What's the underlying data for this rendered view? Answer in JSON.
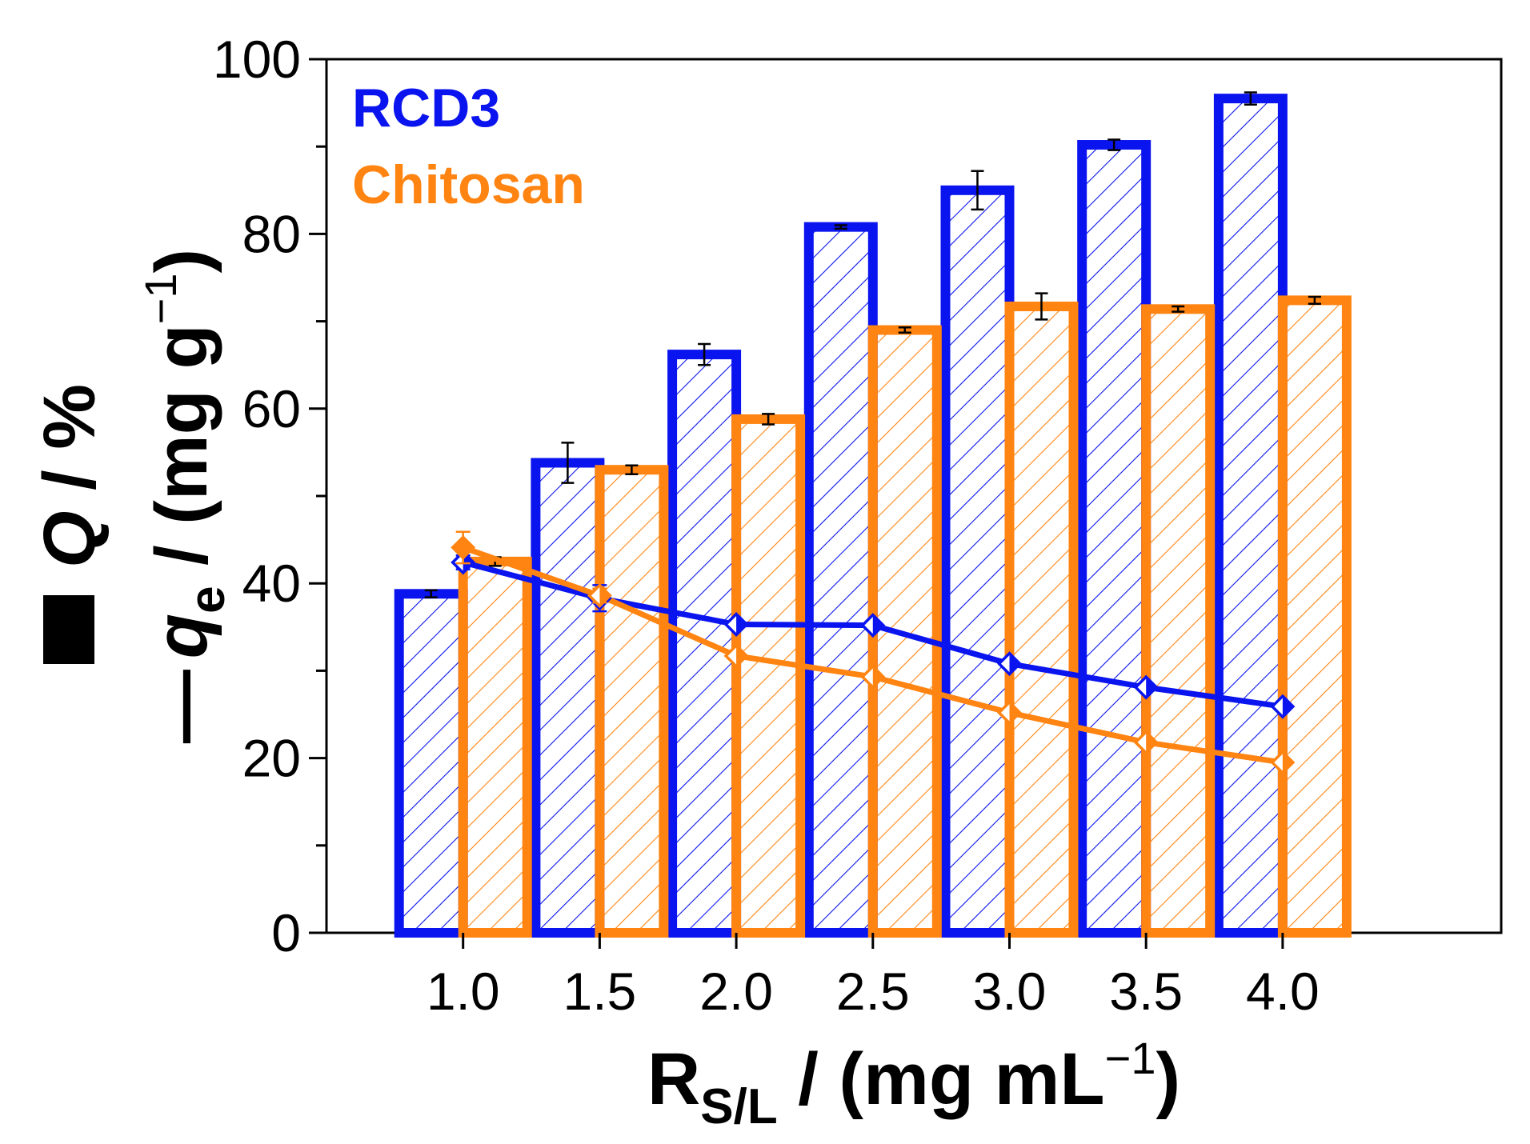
{
  "chart_data": {
    "type": "bar",
    "title": "",
    "xlabel": {
      "main": "R",
      "subscript": "S/L",
      "rest": " / (mg mL",
      "superscript": "−1",
      "close": ")"
    },
    "ylabel": {
      "q_label": {
        "symbol": "Q",
        "rest": " / %"
      },
      "qe_label": {
        "dash": "—",
        "symbol": "q",
        "subscript": "e",
        "rest": " / (mg g",
        "superscript": "−1",
        "close": ")"
      }
    },
    "ylim": [
      0,
      100
    ],
    "y_ticks": [
      "0",
      "20",
      "40",
      "60",
      "80",
      "100"
    ],
    "categories": [
      "1.0",
      "1.5",
      "2.0",
      "2.5",
      "3.0",
      "3.5",
      "4.0"
    ],
    "x_values": [
      1.0,
      1.5,
      2.0,
      2.5,
      3.0,
      3.5,
      4.0
    ],
    "legend": [
      {
        "name": "RCD3",
        "color": "#0a14ee"
      },
      {
        "name": "Chitosan",
        "color": "#ff8411"
      }
    ],
    "bar_series": [
      {
        "name": "RCD3",
        "metric": "Q",
        "color": "#0a14ee",
        "values": [
          38.8,
          53.8,
          66.2,
          80.8,
          85.0,
          90.2,
          95.5
        ],
        "errors": [
          0.4,
          2.3,
          1.2,
          0.2,
          2.2,
          0.6,
          0.7
        ]
      },
      {
        "name": "Chitosan",
        "metric": "Q",
        "color": "#ff8411",
        "values": [
          42.5,
          53.0,
          58.8,
          69.0,
          71.7,
          71.4,
          72.4
        ],
        "errors": [
          0.5,
          0.5,
          0.6,
          0.3,
          1.5,
          0.3,
          0.4
        ]
      }
    ],
    "line_series": [
      {
        "name": "RCD3",
        "metric": "qe",
        "color": "#0a14ee",
        "values": [
          42.4,
          38.3,
          35.3,
          35.2,
          30.8,
          28.1,
          25.9
        ],
        "errors": [
          0.8,
          1.5,
          0.4,
          0.3,
          0.4,
          0.3,
          0.3
        ]
      },
      {
        "name": "Chitosan",
        "metric": "qe",
        "color": "#ff8411",
        "values": [
          44.1,
          38.6,
          31.7,
          29.3,
          25.2,
          21.8,
          19.5
        ],
        "errors": [
          1.8,
          0.8,
          0.5,
          0.4,
          0.4,
          0.4,
          0.3
        ]
      }
    ]
  }
}
